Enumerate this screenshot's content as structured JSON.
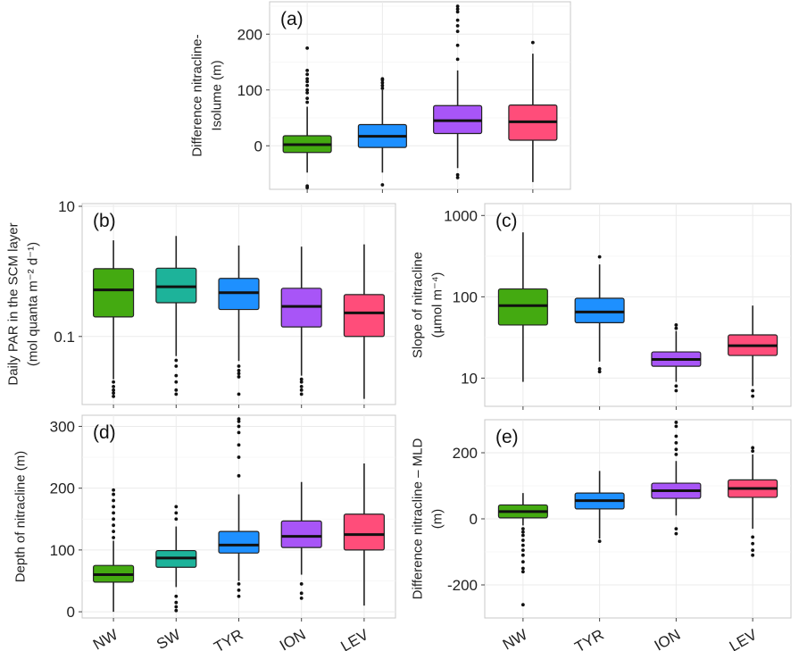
{
  "colors": {
    "NW": "#44aa11",
    "SW": "#1db39a",
    "TYR": "#1e90ff",
    "ION": "#a855f7",
    "LEV": "#ff4d7a"
  },
  "chart_data": [
    {
      "id": "a",
      "type": "box",
      "tag": "(a)",
      "ylabel": [
        "Difference nitracline-",
        "Isolume (m)"
      ],
      "scale": "linear",
      "ylim": [
        -78,
        258
      ],
      "yticks": [
        0,
        100,
        200
      ],
      "ytick_labels": [
        "0",
        "100",
        "200"
      ],
      "minor_ticks": [
        50,
        150,
        250
      ],
      "categories": [
        "NW",
        "TYR",
        "ION",
        "LEV"
      ],
      "show_xlabels": false,
      "boxes": [
        {
          "cat": "NW",
          "whislo": -48,
          "q1": -12,
          "med": 2,
          "q3": 18,
          "whishi": 70,
          "outliers": [
            -72,
            -75,
            78,
            85,
            95,
            100,
            108,
            115,
            120,
            128,
            135,
            175
          ]
        },
        {
          "cat": "TYR",
          "whislo": -48,
          "q1": -3,
          "med": 17,
          "q3": 38,
          "whishi": 100,
          "outliers": [
            -70,
            103,
            108,
            113,
            118,
            120
          ]
        },
        {
          "cat": "ION",
          "whislo": -40,
          "q1": 22,
          "med": 45,
          "q3": 72,
          "whishi": 135,
          "outliers": [
            -52,
            -57,
            155,
            180,
            205,
            215,
            225,
            240,
            245,
            250
          ]
        },
        {
          "cat": "LEV",
          "whislo": -65,
          "q1": 10,
          "med": 43,
          "q3": 73,
          "whishi": 165,
          "outliers": [
            185
          ]
        }
      ]
    },
    {
      "id": "b",
      "type": "box",
      "tag": "(b)",
      "ylabel": [
        "Daily PAR in the SCM layer",
        "(mol quanta m⁻² d⁻¹)"
      ],
      "scale": "log",
      "ylim": [
        0.009,
        11
      ],
      "yticks": [
        0.1,
        10
      ],
      "ytick_labels": [
        "0.1",
        "10"
      ],
      "minor_ticks": [
        1
      ],
      "categories": [
        "NW",
        "SW",
        "TYR",
        "ION",
        "LEV"
      ],
      "show_xlabels": false,
      "boxes": [
        {
          "cat": "NW",
          "whislo": 0.022,
          "q1": 0.2,
          "med": 0.52,
          "q3": 1.1,
          "whishi": 3.0,
          "outliers": [
            0.012,
            0.0135,
            0.015,
            0.017,
            0.02
          ]
        },
        {
          "cat": "SW",
          "whislo": 0.05,
          "q1": 0.33,
          "med": 0.58,
          "q3": 1.12,
          "whishi": 3.5,
          "outliers": [
            0.013,
            0.015,
            0.02,
            0.025,
            0.035,
            0.043
          ]
        },
        {
          "cat": "TYR",
          "whislo": 0.042,
          "q1": 0.26,
          "med": 0.47,
          "q3": 0.78,
          "whishi": 2.5,
          "outliers": [
            0.013,
            0.024,
            0.027,
            0.03,
            0.035
          ]
        },
        {
          "cat": "ION",
          "whislo": 0.025,
          "q1": 0.14,
          "med": 0.29,
          "q3": 0.55,
          "whishi": 2.4,
          "outliers": [
            0.013,
            0.015,
            0.017,
            0.02,
            0.022
          ]
        },
        {
          "cat": "LEV",
          "whislo": 0.011,
          "q1": 0.1,
          "med": 0.23,
          "q3": 0.44,
          "whishi": 2.6,
          "outliers": []
        }
      ]
    },
    {
      "id": "c",
      "type": "box",
      "tag": "(c)",
      "ylabel": [
        "Slope of nitracline",
        "(µmol m⁻⁴)"
      ],
      "scale": "log",
      "ylim": [
        4.5,
        1400
      ],
      "yticks": [
        10,
        100,
        1000
      ],
      "ytick_labels": [
        "10",
        "100",
        "1000"
      ],
      "minor_ticks": [
        31.6,
        316
      ],
      "categories": [
        "NW",
        "TYR",
        "ION",
        "LEV"
      ],
      "show_xlabels": false,
      "boxes": [
        {
          "cat": "NW",
          "whislo": 9,
          "q1": 45,
          "med": 78,
          "q3": 125,
          "whishi": 620,
          "outliers": []
        },
        {
          "cat": "TYR",
          "whislo": 16,
          "q1": 48,
          "med": 65,
          "q3": 96,
          "whishi": 250,
          "outliers": [
            12,
            13,
            310
          ]
        },
        {
          "cat": "ION",
          "whislo": 9,
          "q1": 14,
          "med": 17,
          "q3": 21,
          "whishi": 38,
          "outliers": [
            7,
            8,
            41,
            45
          ]
        },
        {
          "cat": "LEV",
          "whislo": 8,
          "q1": 19,
          "med": 25,
          "q3": 34,
          "whishi": 78,
          "outliers": [
            6,
            7
          ]
        }
      ]
    },
    {
      "id": "d",
      "type": "box",
      "tag": "(d)",
      "ylabel": [
        "Depth of nitracline (m)"
      ],
      "scale": "linear",
      "ylim": [
        -10,
        318
      ],
      "yticks": [
        0,
        100,
        200,
        300
      ],
      "ytick_labels": [
        "0",
        "100",
        "200",
        "300"
      ],
      "minor_ticks": [
        50,
        150,
        250
      ],
      "categories": [
        "NW",
        "SW",
        "TYR",
        "ION",
        "LEV"
      ],
      "show_xlabels": true,
      "boxes": [
        {
          "cat": "NW",
          "whislo": 0,
          "q1": 48,
          "med": 60,
          "q3": 75,
          "whishi": 115,
          "outliers": [
            120,
            130,
            140,
            150,
            160,
            170,
            180,
            190,
            197
          ]
        },
        {
          "cat": "SW",
          "whislo": 40,
          "q1": 72,
          "med": 87,
          "q3": 99,
          "whishi": 138,
          "outliers": [
            2,
            8,
            15,
            25,
            150,
            160,
            170
          ]
        },
        {
          "cat": "TYR",
          "whislo": 50,
          "q1": 95,
          "med": 108,
          "q3": 130,
          "whishi": 190,
          "outliers": [
            25,
            35,
            45,
            220,
            250,
            270,
            290,
            300,
            308,
            312
          ]
        },
        {
          "cat": "ION",
          "whislo": 60,
          "q1": 104,
          "med": 122,
          "q3": 147,
          "whishi": 210,
          "outliers": [
            22,
            30,
            45
          ]
        },
        {
          "cat": "LEV",
          "whislo": 10,
          "q1": 100,
          "med": 125,
          "q3": 158,
          "whishi": 240,
          "outliers": []
        }
      ]
    },
    {
      "id": "e",
      "type": "box",
      "tag": "(e)",
      "ylabel": [
        "Difference nitracline – MLD",
        "(m)"
      ],
      "scale": "linear",
      "ylim": [
        -300,
        300
      ],
      "yticks": [
        -200,
        0,
        200
      ],
      "ytick_labels": [
        "-200",
        "0",
        "200"
      ],
      "minor_ticks": [
        -100,
        100
      ],
      "categories": [
        "NW",
        "TYR",
        "ION",
        "LEV"
      ],
      "show_xlabels": true,
      "boxes": [
        {
          "cat": "NW",
          "whislo": -20,
          "q1": 3,
          "med": 22,
          "q3": 42,
          "whishi": 78,
          "outliers": [
            -30,
            -40,
            -50,
            -65,
            -80,
            -95,
            -110,
            -130,
            -150,
            -160,
            -260
          ]
        },
        {
          "cat": "TYR",
          "whislo": -60,
          "q1": 30,
          "med": 55,
          "q3": 78,
          "whishi": 145,
          "outliers": [
            -68
          ]
        },
        {
          "cat": "ION",
          "whislo": 10,
          "q1": 62,
          "med": 85,
          "q3": 108,
          "whishi": 175,
          "outliers": [
            -30,
            -45,
            195,
            210,
            230,
            250,
            280,
            292
          ]
        },
        {
          "cat": "LEV",
          "whislo": -30,
          "q1": 65,
          "med": 92,
          "q3": 118,
          "whishi": 195,
          "outliers": [
            -55,
            -75,
            -95,
            -110,
            205,
            215
          ]
        }
      ]
    }
  ]
}
